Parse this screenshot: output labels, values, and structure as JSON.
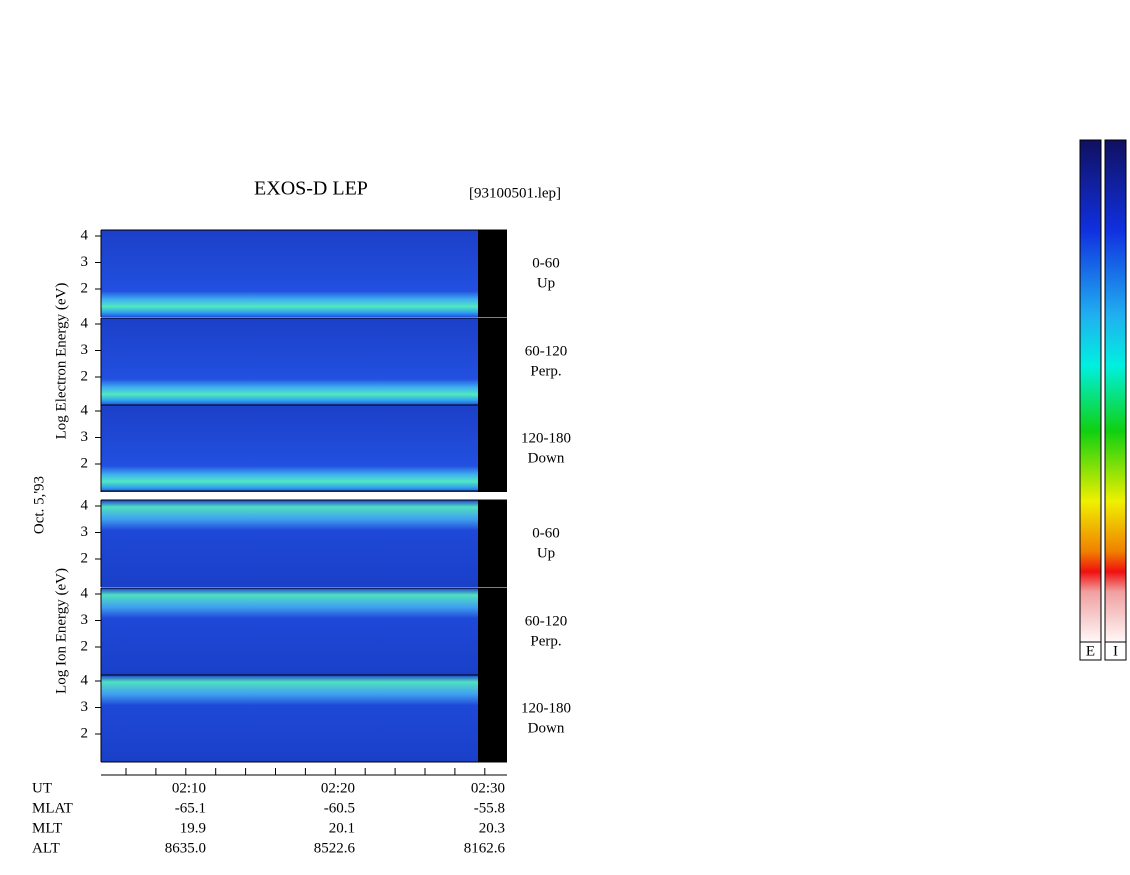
{
  "title": "EXOS-D LEP",
  "file": "[93100501.lep]",
  "electron_axis_label": "Log  Electron  Energy (eV)",
  "ion_axis_label": "Log  Ion  Energy (eV)",
  "date": "Oct. 5,'93",
  "panels": [
    {
      "species": "electron",
      "angle": "0-60",
      "direction": "Up",
      "yticks": [
        "4",
        "3",
        "2"
      ]
    },
    {
      "species": "electron",
      "angle": "60-120",
      "direction": "Perp.",
      "yticks": [
        "4",
        "3",
        "2"
      ]
    },
    {
      "species": "electron",
      "angle": "120-180",
      "direction": "Down",
      "yticks": [
        "4",
        "3",
        "2"
      ]
    },
    {
      "species": "ion",
      "angle": "0-60",
      "direction": "Up",
      "yticks": [
        "4",
        "3",
        "2"
      ]
    },
    {
      "species": "ion",
      "angle": "60-120",
      "direction": "Perp.",
      "yticks": [
        "4",
        "3",
        "2"
      ]
    },
    {
      "species": "ion",
      "angle": "120-180",
      "direction": "Down",
      "yticks": [
        "4",
        "3",
        "2"
      ]
    }
  ],
  "time_axis": [
    {
      "name": "UT",
      "values": [
        "02:10",
        "02:20",
        "02:30"
      ]
    },
    {
      "name": "MLAT",
      "values": [
        "-65.1",
        "-60.5",
        "-55.8"
      ]
    },
    {
      "name": "MLT",
      "values": [
        "19.9",
        "20.1",
        "20.3"
      ]
    },
    {
      "name": "ALT",
      "values": [
        "8635.0",
        "8522.6",
        "8162.6"
      ]
    }
  ],
  "colorbars": [
    "E",
    "I"
  ]
}
